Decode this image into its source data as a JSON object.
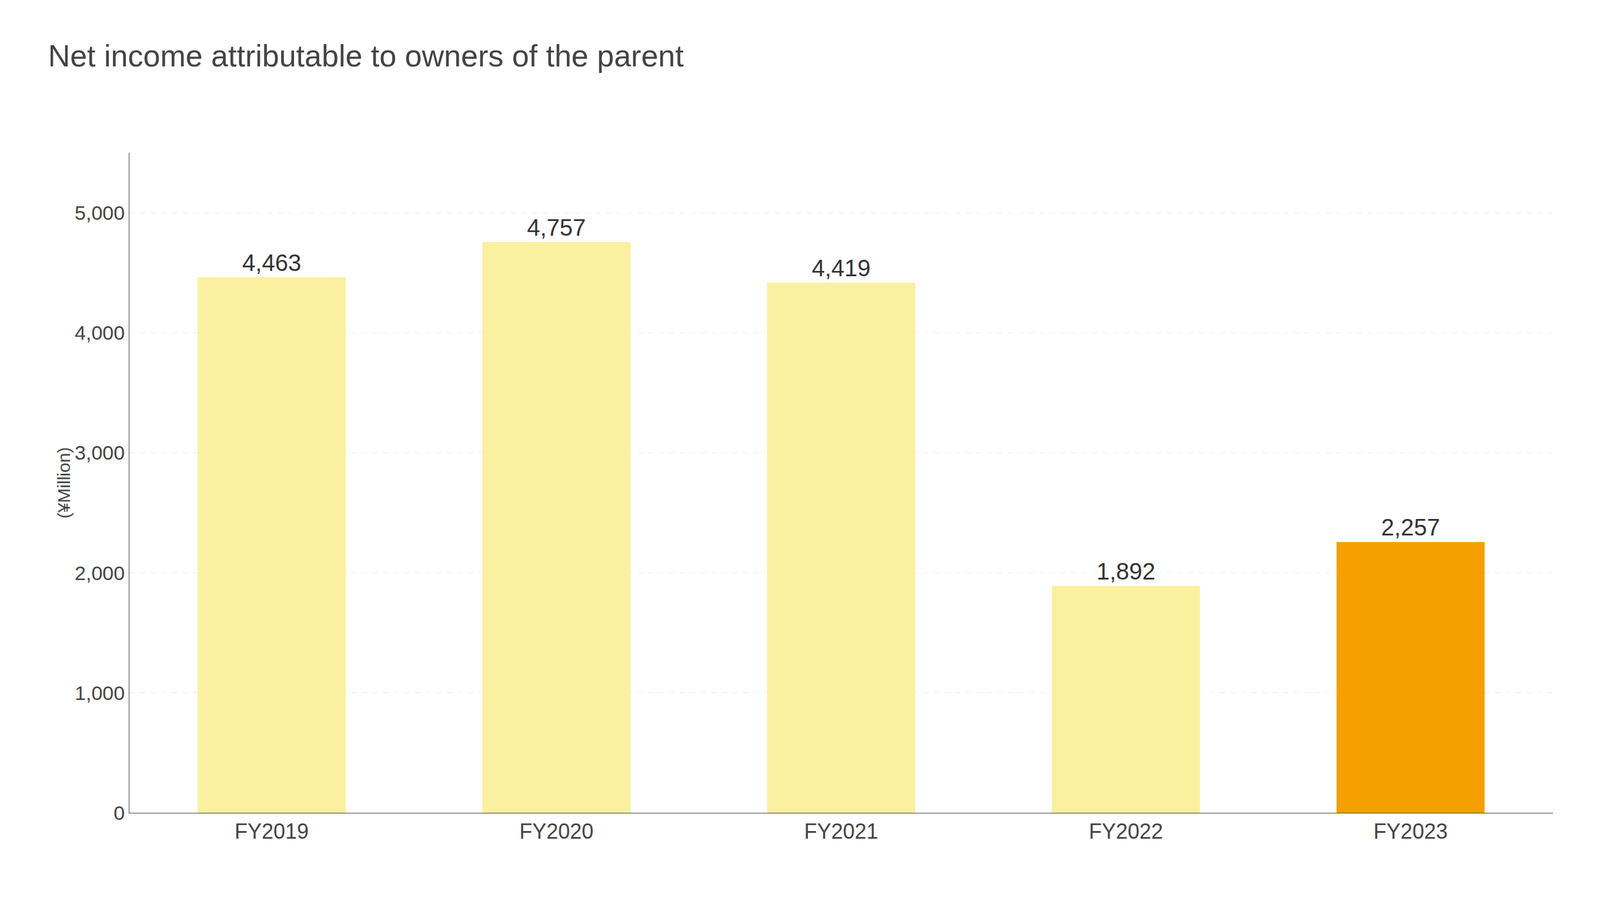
{
  "chart_data": {
    "type": "bar",
    "title": "Net income attributable to owners of the parent",
    "ylabel": "(¥Million)",
    "categories": [
      "FY2019",
      "FY2020",
      "FY2021",
      "FY2022",
      "FY2023"
    ],
    "values": [
      4463,
      4757,
      4419,
      1892,
      2257
    ],
    "value_labels": [
      "4,463",
      "4,757",
      "4,419",
      "1,892",
      "2,257"
    ],
    "data_labels": true,
    "colors": [
      "#FAF0A0",
      "#FAF0A0",
      "#FAF0A0",
      "#FAF0A0",
      "#F5A000"
    ],
    "ylim": [
      0,
      5500
    ],
    "yticks": [
      0,
      {
        "value": 1000,
        "label": "1,000"
      },
      {
        "value": 2000,
        "label": "2,000"
      },
      {
        "value": 3000,
        "label": "3,000"
      },
      {
        "value": 4000,
        "label": "4,000"
      },
      {
        "value": 5000,
        "label": "5,000"
      }
    ],
    "grid": true
  }
}
